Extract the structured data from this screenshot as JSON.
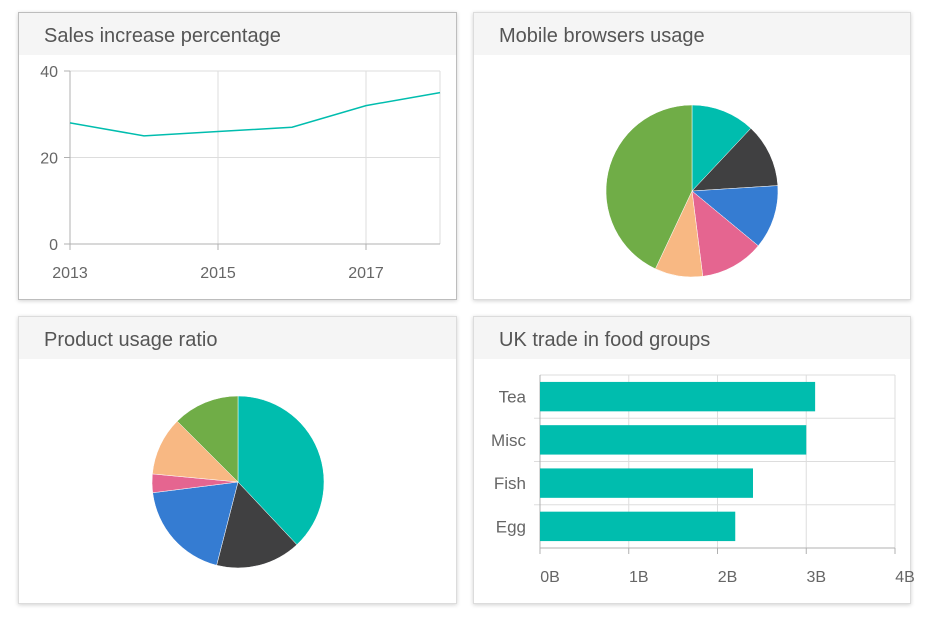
{
  "colors": {
    "teal": "#00bdae",
    "dark": "#404041",
    "blue": "#357cd2",
    "pink": "#e56590",
    "peach": "#f8b883",
    "green": "#70ad47",
    "grid": "#dddddd",
    "axis": "#b0b0b0"
  },
  "cards": {
    "sales": {
      "title": "Sales increase percentage"
    },
    "mobile": {
      "title": "Mobile browsers usage"
    },
    "product": {
      "title": "Product usage ratio"
    },
    "trade": {
      "title": "UK trade in food groups"
    }
  },
  "chart_data": [
    {
      "type": "line",
      "title": "Sales increase percentage",
      "x": [
        2013,
        2014,
        2015,
        2016,
        2017,
        2018
      ],
      "series": [
        {
          "values": [
            28,
            25,
            26,
            27,
            32,
            35
          ],
          "color": "#00bdae"
        }
      ],
      "x_ticks": [
        "2013",
        "2015",
        "2017"
      ],
      "y_ticks": [
        "0",
        "20",
        "40"
      ],
      "ylim": [
        0,
        40
      ],
      "xlim": [
        2013,
        2018
      ],
      "grid": true
    },
    {
      "type": "pie",
      "title": "Mobile browsers usage",
      "values": [
        12,
        12,
        12,
        12,
        9,
        43
      ],
      "colors": [
        "#00bdae",
        "#404041",
        "#357cd2",
        "#e56590",
        "#f8b883",
        "#70ad47"
      ]
    },
    {
      "type": "pie",
      "title": "Product usage ratio",
      "values": [
        38,
        16,
        19,
        3.5,
        11,
        12.5
      ],
      "colors": [
        "#00bdae",
        "#404041",
        "#357cd2",
        "#e56590",
        "#f8b883",
        "#70ad47"
      ]
    },
    {
      "type": "bar",
      "orientation": "horizontal",
      "title": "UK trade in food groups",
      "categories": [
        "Tea",
        "Misc",
        "Fish",
        "Egg"
      ],
      "values": [
        3.1,
        3.0,
        2.4,
        2.2
      ],
      "x_ticks": [
        "0B",
        "1B",
        "2B",
        "3B",
        "4B"
      ],
      "xlim": [
        0,
        4
      ],
      "color": "#00bdae",
      "grid": true
    }
  ]
}
